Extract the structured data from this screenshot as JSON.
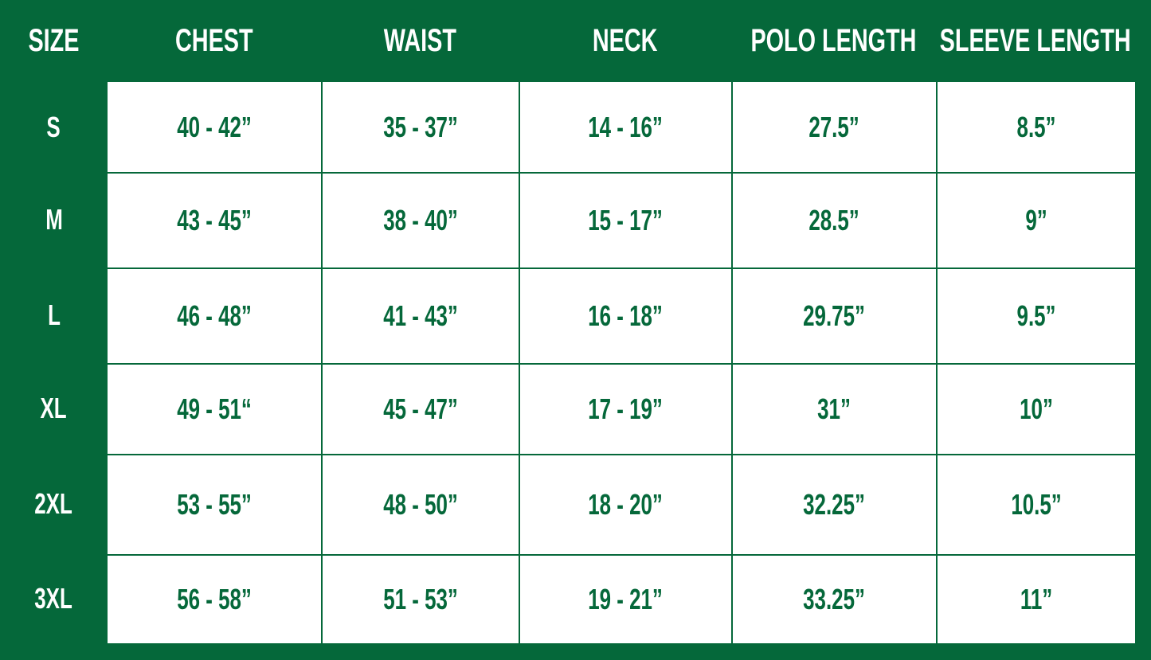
{
  "colors": {
    "brand_green": "#05683a",
    "cell_background": "#ffffff"
  },
  "headers": [
    "SIZE",
    "CHEST",
    "WAIST",
    "NECK",
    "POLO LENGTH",
    "SLEEVE LENGTH"
  ],
  "rows": [
    {
      "size": "S",
      "values": [
        "40 - 42”",
        "35 - 37”",
        "14 - 16”",
        "27.5”",
        "8.5”"
      ]
    },
    {
      "size": "M",
      "values": [
        "43 - 45”",
        "38 - 40”",
        "15 - 17”",
        "28.5”",
        "9”"
      ]
    },
    {
      "size": "L",
      "values": [
        "46 - 48”",
        "41 - 43”",
        "16 - 18”",
        "29.75”",
        "9.5”"
      ]
    },
    {
      "size": "XL",
      "values": [
        "49 - 51“",
        "45 - 47”",
        "17 - 19”",
        "31”",
        "10”"
      ]
    },
    {
      "size": "2XL",
      "values": [
        "53 - 55”",
        "48 - 50”",
        "18 - 20”",
        "32.25”",
        "10.5”"
      ]
    },
    {
      "size": "3XL",
      "values": [
        "56 - 58”",
        "51 - 53”",
        "19 - 21”",
        "33.25”",
        "11”"
      ]
    }
  ]
}
